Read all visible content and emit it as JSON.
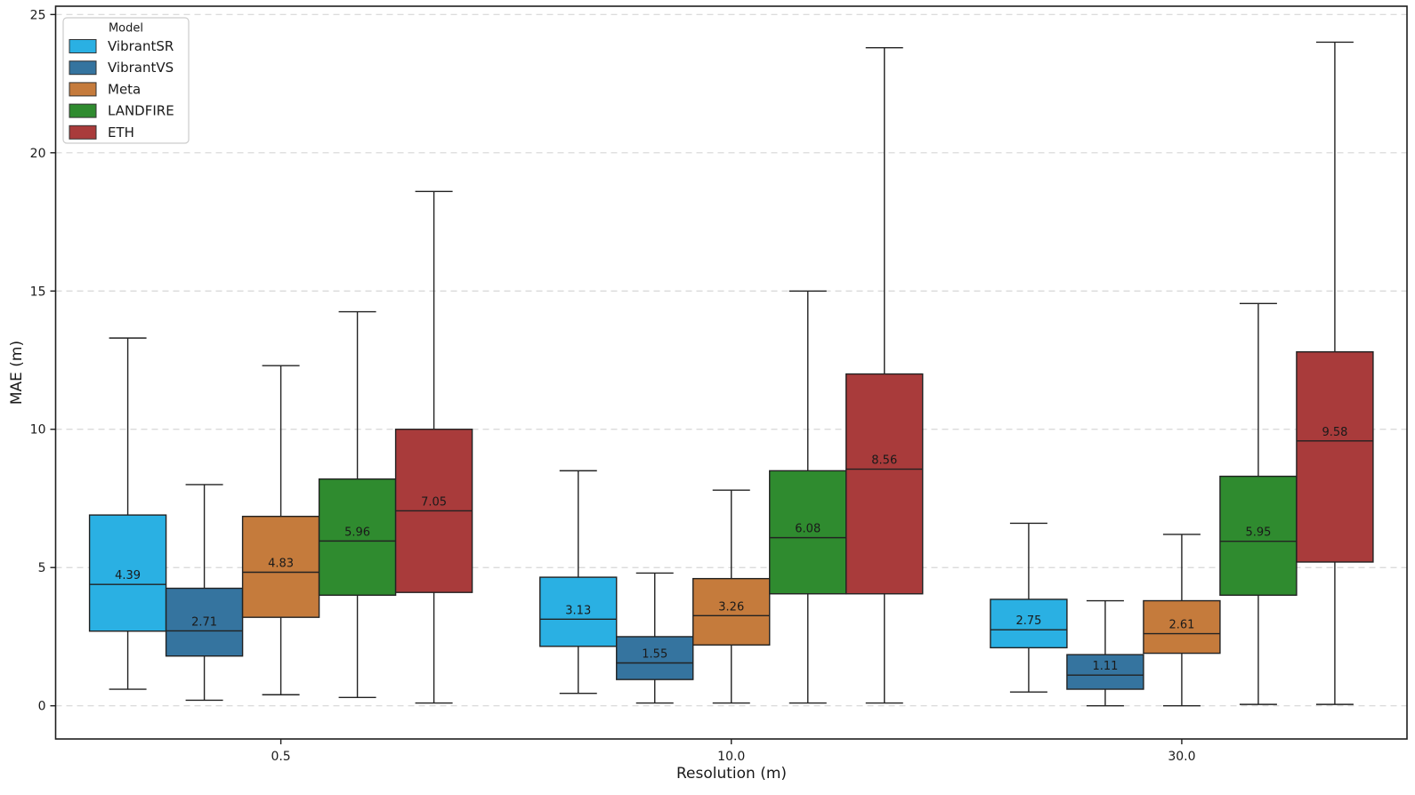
{
  "chart_data": {
    "type": "box",
    "title": "",
    "xlabel": "Resolution (m)",
    "ylabel": "MAE (m)",
    "categories": [
      "0.5",
      "10.0",
      "30.0"
    ],
    "yticks": [
      0,
      5,
      10,
      15,
      20,
      25
    ],
    "ylim": [
      -1.2,
      25.3
    ],
    "grid": "horizontal dashed",
    "grid_color": "#d6d6d6",
    "axis_color": "#1e1e1e",
    "box_edge_color": "#222222",
    "legend_title": "Model",
    "legend_position": "upper left",
    "median_labels_shown": true,
    "series": [
      {
        "name": "VibrantSR",
        "color": "#2ab0e3",
        "boxes": [
          {
            "category": "0.5",
            "whislo": 0.6,
            "q1": 2.7,
            "med": 4.39,
            "q3": 6.9,
            "whishi": 13.3
          },
          {
            "category": "10.0",
            "whislo": 0.45,
            "q1": 2.15,
            "med": 3.13,
            "q3": 4.65,
            "whishi": 8.5
          },
          {
            "category": "30.0",
            "whislo": 0.5,
            "q1": 2.1,
            "med": 2.75,
            "q3": 3.85,
            "whishi": 6.6
          }
        ]
      },
      {
        "name": "VibrantVS",
        "color": "#35749f",
        "boxes": [
          {
            "category": "0.5",
            "whislo": 0.2,
            "q1": 1.8,
            "med": 2.71,
            "q3": 4.25,
            "whishi": 8.0
          },
          {
            "category": "10.0",
            "whislo": 0.1,
            "q1": 0.95,
            "med": 1.55,
            "q3": 2.5,
            "whishi": 4.8
          },
          {
            "category": "30.0",
            "whislo": 0.0,
            "q1": 0.6,
            "med": 1.11,
            "q3": 1.85,
            "whishi": 3.8
          }
        ]
      },
      {
        "name": "Meta",
        "color": "#c57b3c",
        "boxes": [
          {
            "category": "0.5",
            "whislo": 0.4,
            "q1": 3.2,
            "med": 4.83,
            "q3": 6.85,
            "whishi": 12.3
          },
          {
            "category": "10.0",
            "whislo": 0.1,
            "q1": 2.2,
            "med": 3.26,
            "q3": 4.6,
            "whishi": 7.8
          },
          {
            "category": "30.0",
            "whislo": 0.0,
            "q1": 1.9,
            "med": 2.61,
            "q3": 3.8,
            "whishi": 6.2
          }
        ]
      },
      {
        "name": "LANDFIRE",
        "color": "#2f8b2f",
        "boxes": [
          {
            "category": "0.5",
            "whislo": 0.3,
            "q1": 4.0,
            "med": 5.96,
            "q3": 8.2,
            "whishi": 14.25
          },
          {
            "category": "10.0",
            "whislo": 0.1,
            "q1": 4.05,
            "med": 6.08,
            "q3": 8.5,
            "whishi": 15.0
          },
          {
            "category": "30.0",
            "whislo": 0.05,
            "q1": 4.0,
            "med": 5.95,
            "q3": 8.3,
            "whishi": 14.55
          }
        ]
      },
      {
        "name": "ETH",
        "color": "#a93b3b",
        "boxes": [
          {
            "category": "0.5",
            "whislo": 0.1,
            "q1": 4.1,
            "med": 7.05,
            "q3": 10.0,
            "whishi": 18.6
          },
          {
            "category": "10.0",
            "whislo": 0.1,
            "q1": 4.05,
            "med": 8.56,
            "q3": 12.0,
            "whishi": 23.8
          },
          {
            "category": "30.0",
            "whislo": 0.05,
            "q1": 5.2,
            "med": 9.58,
            "q3": 12.8,
            "whishi": 24.0
          }
        ]
      }
    ]
  }
}
